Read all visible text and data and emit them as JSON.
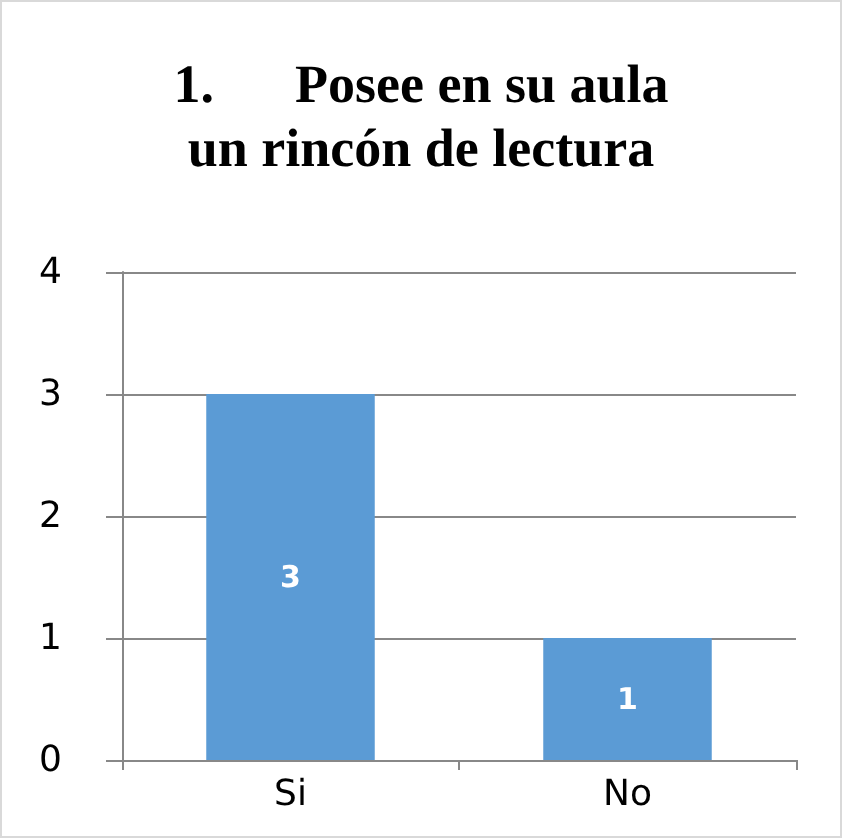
{
  "chart_data": {
    "type": "bar",
    "title": "1.      Posee en su aula\nun rincón de lectura",
    "categories": [
      "Si",
      "No"
    ],
    "values": [
      3,
      1
    ],
    "color": "#5b9bd5",
    "ylim": [
      0,
      4
    ],
    "yticks": [
      0,
      1,
      2,
      3,
      4
    ],
    "grid": "y",
    "data_labels": true
  }
}
